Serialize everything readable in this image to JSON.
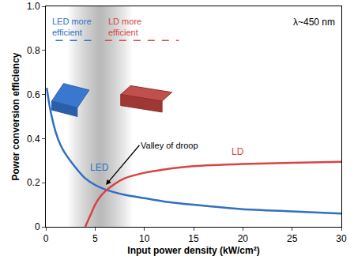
{
  "chart_data": {
    "type": "line",
    "x_label": "Input power density (kW/cm²)",
    "y_label": "Power conversion efficiency",
    "xlim": [
      0,
      30
    ],
    "xticks": [
      0,
      5,
      10,
      15,
      20,
      25,
      30
    ],
    "ylim": [
      0,
      1
    ],
    "yticks": [
      0,
      0.2,
      0.4,
      0.6,
      0.8,
      {
        "value": 1,
        "label": "1.0"
      }
    ],
    "grid": false,
    "series": [
      {
        "name": "LED",
        "color": "#2f6fc4",
        "x": [
          0.1,
          0.3,
          0.6,
          1,
          1.5,
          2,
          3,
          4,
          5,
          6,
          8,
          10,
          12,
          15,
          20,
          25,
          30
        ],
        "values": [
          0.63,
          0.57,
          0.5,
          0.43,
          0.37,
          0.33,
          0.27,
          0.22,
          0.19,
          0.17,
          0.145,
          0.13,
          0.115,
          0.1,
          0.08,
          0.07,
          0.06
        ]
      },
      {
        "name": "LD",
        "color": "#d64545",
        "x": [
          4,
          4.5,
          5,
          5.5,
          6,
          7,
          8,
          10,
          12,
          15,
          20,
          25,
          30
        ],
        "values": [
          0,
          0.05,
          0.1,
          0.135,
          0.16,
          0.195,
          0.22,
          0.245,
          0.26,
          0.275,
          0.285,
          0.29,
          0.295
        ]
      }
    ],
    "annotations": [
      {
        "text": "LED more efficient",
        "color": "#2f6fc4"
      },
      {
        "text": "LD more efficient",
        "color": "#d64545"
      },
      {
        "text": "λ~450 nm",
        "color": "#000000"
      },
      {
        "text": "Valley of droop",
        "color": "#000000"
      }
    ]
  }
}
